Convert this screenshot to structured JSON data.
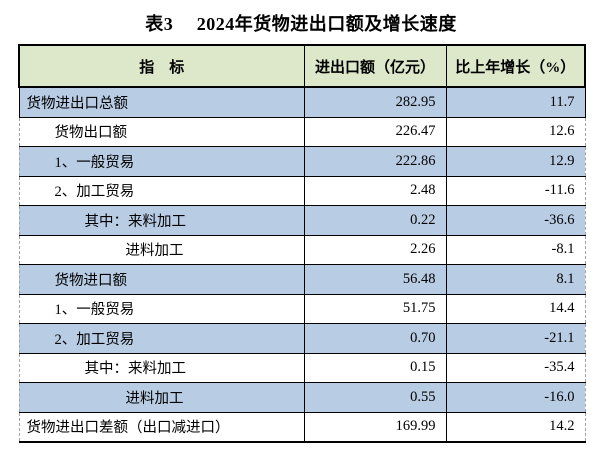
{
  "title": "表3　 2024年货物进出口额及增长速度",
  "colors": {
    "header_bg": "#dde8ca",
    "row_highlight_blue": "#b8cce4",
    "row_white": "#ffffff",
    "border_solid": "#000000",
    "border_dashed": "#a3a3a3",
    "text": "#000000"
  },
  "table": {
    "columns": [
      "指　标",
      "进出口额（亿元）",
      "比上年增长（%）"
    ],
    "rows": [
      {
        "indicator": "货物进出口总额",
        "value": "282.95",
        "growth": "11.7",
        "indent": 0,
        "shade": "blue"
      },
      {
        "indicator": "货物出口额",
        "value": "226.47",
        "growth": "12.6",
        "indent": 1,
        "shade": "white"
      },
      {
        "indicator": "1、一般贸易",
        "value": "222.86",
        "growth": "12.9",
        "indent": 1,
        "shade": "blue"
      },
      {
        "indicator": "2、加工贸易",
        "value": "2.48",
        "growth": "-11.6",
        "indent": 1,
        "shade": "white"
      },
      {
        "indicator": "其中：来料加工",
        "value": "0.22",
        "growth": "-36.6",
        "indent": 2,
        "shade": "blue"
      },
      {
        "indicator": "进料加工",
        "value": "2.26",
        "growth": "-8.1",
        "indent": 3,
        "shade": "white"
      },
      {
        "indicator": "货物进口额",
        "value": "56.48",
        "growth": "8.1",
        "indent": 1,
        "shade": "blue"
      },
      {
        "indicator": "1、一般贸易",
        "value": "51.75",
        "growth": "14.4",
        "indent": 1,
        "shade": "white"
      },
      {
        "indicator": "2、加工贸易",
        "value": "0.70",
        "growth": "-21.1",
        "indent": 1,
        "shade": "blue"
      },
      {
        "indicator": "其中：来料加工",
        "value": "0.15",
        "growth": "-35.4",
        "indent": 2,
        "shade": "white"
      },
      {
        "indicator": "进料加工",
        "value": "0.55",
        "growth": "-16.0",
        "indent": 3,
        "shade": "blue"
      },
      {
        "indicator": "货物进出口差额（出口减进口）",
        "value": "169.99",
        "growth": "14.2",
        "indent": 0,
        "shade": "white"
      }
    ]
  },
  "chart_data": {
    "type": "table",
    "title": "表3　 2024年货物进出口额及增长速度",
    "columns": [
      "指标",
      "进出口额（亿元）",
      "比上年增长（%）"
    ],
    "rows": [
      [
        "货物进出口总额",
        282.95,
        11.7
      ],
      [
        "货物出口额",
        226.47,
        12.6
      ],
      [
        "1、一般贸易",
        222.86,
        12.9
      ],
      [
        "2、加工贸易",
        2.48,
        -11.6
      ],
      [
        "其中：来料加工",
        0.22,
        -36.6
      ],
      [
        "进料加工",
        2.26,
        -8.1
      ],
      [
        "货物进口额",
        56.48,
        8.1
      ],
      [
        "1、一般贸易",
        51.75,
        14.4
      ],
      [
        "2、加工贸易",
        0.7,
        -21.1
      ],
      [
        "其中：来料加工",
        0.15,
        -35.4
      ],
      [
        "进料加工",
        0.55,
        -16.0
      ],
      [
        "货物进出口差额（出口减进口）",
        169.99,
        14.2
      ]
    ]
  }
}
